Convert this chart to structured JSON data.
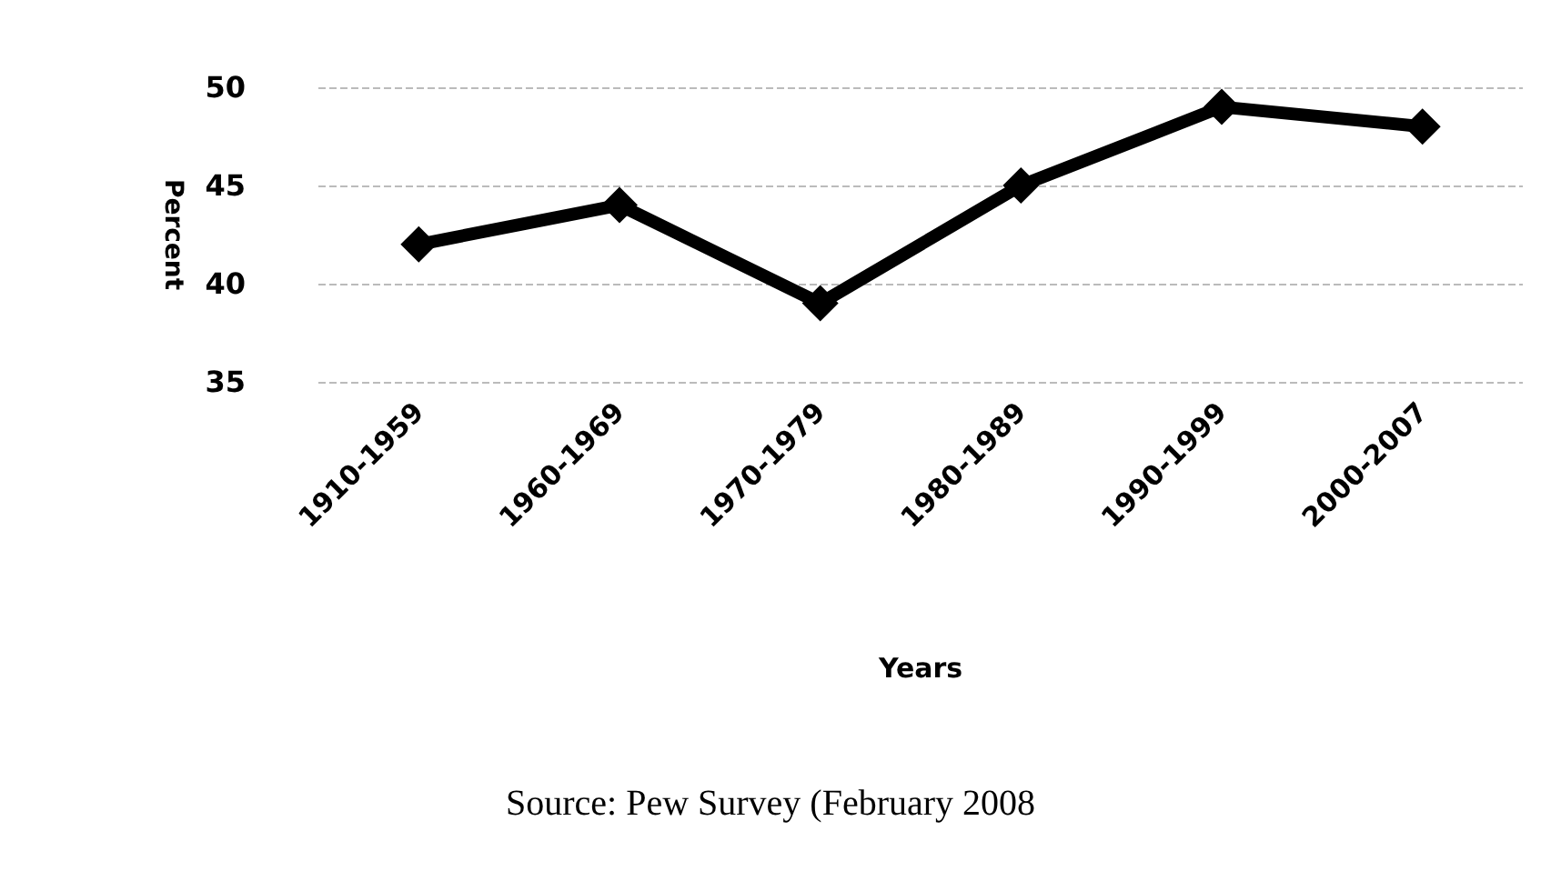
{
  "chart_data": {
    "type": "line",
    "xlabel": "Years",
    "ylabel": "Percent",
    "categories": [
      "1910-1959",
      "1960-1969",
      "1970-1979",
      "1980-1989",
      "1990-1999",
      "2000-2007"
    ],
    "series": [
      {
        "color": "#000000",
        "values": [
          42,
          44,
          39,
          45,
          49,
          48
        ]
      }
    ],
    "ylim": [
      35,
      50
    ],
    "yticks": [
      35,
      40,
      45,
      50
    ],
    "grid": "y",
    "marker": "diamond",
    "line_style": "solid",
    "annotations": [
      "Source: Pew Survey (February 2008"
    ]
  }
}
